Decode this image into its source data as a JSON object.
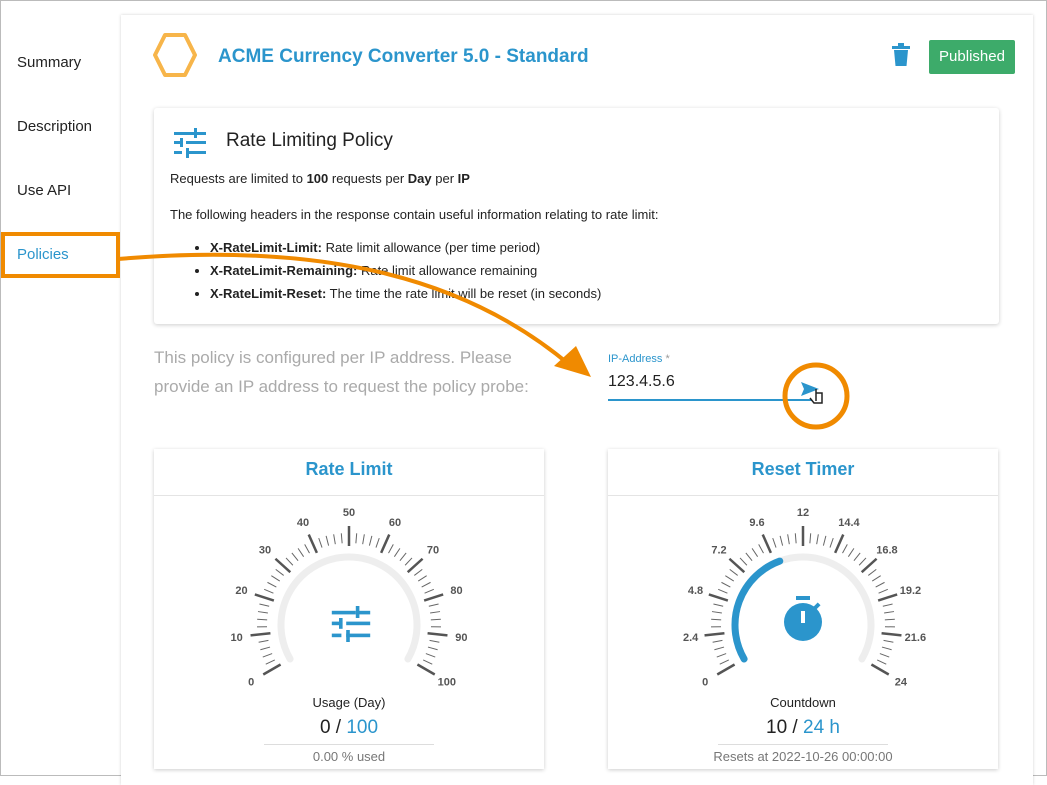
{
  "sidebar": {
    "items": [
      {
        "label": "Summary"
      },
      {
        "label": "Description"
      },
      {
        "label": "Use API"
      },
      {
        "label": "Policies",
        "active": true
      }
    ]
  },
  "header": {
    "title": "ACME Currency Converter 5.0 - Standard",
    "status": "Published",
    "icons": [
      "product-logo-icon",
      "trash-icon"
    ]
  },
  "colors": {
    "accent": "#2b95cc",
    "published": "#3dab6a",
    "annotation": "#f08a00"
  },
  "policy": {
    "title": "Rate Limiting Policy",
    "icon": "sliders-icon",
    "summary": {
      "pre": "Requests are limited to ",
      "limit": "100",
      "mid": " requests per ",
      "period": "Day",
      "mid2": " per ",
      "scope": "IP"
    },
    "intro": "The following headers in the response contain useful information relating to rate limit:",
    "headers": [
      {
        "name": "X-RateLimit-Limit:",
        "desc": " Rate limit allowance (per time period)"
      },
      {
        "name": "X-RateLimit-Remaining:",
        "desc": " Rate limit allowance remaining"
      },
      {
        "name": "X-RateLimit-Reset:",
        "desc": " The time the rate limit will be reset (in seconds)"
      }
    ]
  },
  "probe": {
    "text": "This policy is configured per IP address. Please provide an IP address to request the policy probe:",
    "ip_label": "IP-Address",
    "required": "*",
    "ip_value": "123.4.5.6",
    "send_icon": "send-icon"
  },
  "gauges": [
    {
      "title": "Rate Limit",
      "label": "Usage (Day)",
      "value": "0",
      "max": "100",
      "footer": "0.00 % used",
      "ticks": [
        "0",
        "10",
        "20",
        "30",
        "40",
        "50",
        "60",
        "70",
        "80",
        "90",
        "100"
      ],
      "fraction": 0,
      "icon": "sliders-icon"
    },
    {
      "title": "Reset Timer",
      "label": "Countdown",
      "value": "10",
      "max": "24 h",
      "footer": "Resets at 2022-10-26 00:00:00",
      "ticks": [
        "0",
        "2.4",
        "4.8",
        "7.2",
        "9.6",
        "12",
        "14.4",
        "16.8",
        "19.2",
        "21.6",
        "24"
      ],
      "fraction": 0.4167,
      "icon": "stopwatch-icon"
    }
  ]
}
